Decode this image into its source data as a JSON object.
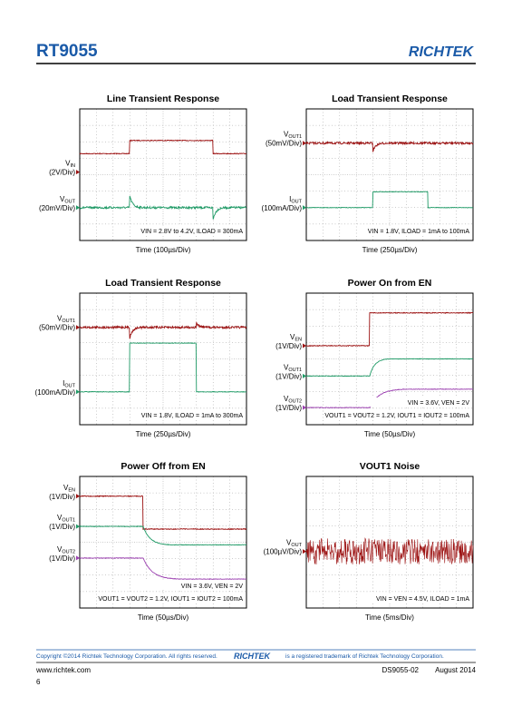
{
  "header": {
    "title": "RT9055",
    "logo": "RICHTEK"
  },
  "plots": [
    {
      "title": "Line Transient Response",
      "channels": [
        {
          "label": "V",
          "sub": "IN",
          "scale": "(2V/Div)"
        },
        {
          "label": "V",
          "sub": "OUT",
          "scale": "(20mV/Div)"
        }
      ],
      "conditions": [
        "VIN = 2.8V to 4.2V, ILOAD = 300mA"
      ],
      "time": "Time (100µs/Div)"
    },
    {
      "title": "Load Transient Response",
      "channels": [
        {
          "label": "V",
          "sub": "OUT1",
          "scale": "(50mV/Div)"
        },
        {
          "label": "I",
          "sub": "OUT",
          "scale": "(100mA/Div)"
        }
      ],
      "conditions": [
        "VIN = 1.8V, ILOAD = 1mA to 100mA"
      ],
      "time": "Time (250µs/Div)"
    },
    {
      "title": "Load  Transient  Response",
      "channels": [
        {
          "label": "V",
          "sub": "OUT1",
          "scale": "(50mV/Div)"
        },
        {
          "label": "I",
          "sub": "OUT",
          "scale": "(100mA/Div)"
        }
      ],
      "conditions": [
        "VIN = 1.8V, ILOAD = 1mA to 300mA"
      ],
      "time": "Time (250µs/Div)"
    },
    {
      "title": "Power On from EN",
      "channels": [
        {
          "label": "V",
          "sub": "EN",
          "scale": "(1V/Div)"
        },
        {
          "label": "V",
          "sub": "OUT1",
          "scale": "(1V/Div)"
        },
        {
          "label": "V",
          "sub": "OUT2",
          "scale": "(1V/Div)"
        }
      ],
      "conditions": [
        "VIN = 3.6V, VEN = 2V",
        "VOUT1 = VOUT2 = 1.2V, IOUT1 = IOUT2 = 100mA"
      ],
      "time": "Time (50µs/Div)"
    },
    {
      "title": "Power Off from EN",
      "channels": [
        {
          "label": "V",
          "sub": "EN",
          "scale": "(1V/Div)"
        },
        {
          "label": "V",
          "sub": "OUT1",
          "scale": "(1V/Div)"
        },
        {
          "label": "V",
          "sub": "OUT2",
          "scale": "(1V/Div)"
        }
      ],
      "conditions": [
        "VIN = 3.6V, VEN = 2V",
        "VOUT1 = VOUT2 = 1.2V, IOUT1 = IOUT2 = 100mA"
      ],
      "time": "Time (50µs/Div)"
    },
    {
      "title": "VOUT1 Noise",
      "channels": [
        {
          "label": "V",
          "sub": "OUT",
          "scale": "(100µV/Div)"
        }
      ],
      "conditions": [
        "VIN = VEN = 4.5V, ILOAD = 1mA"
      ],
      "time": "Time (5ms/Div)"
    }
  ],
  "footer": {
    "copyright": "Copyright ©2014 Richtek Technology Corporation. All rights reserved.",
    "logo": "RICHTEK",
    "trademark": "is a registered trademark of Richtek Technology Corporation.",
    "website": "www.richtek.com",
    "doc": "DS9055-02",
    "date": "August 2014",
    "page": "6"
  }
}
